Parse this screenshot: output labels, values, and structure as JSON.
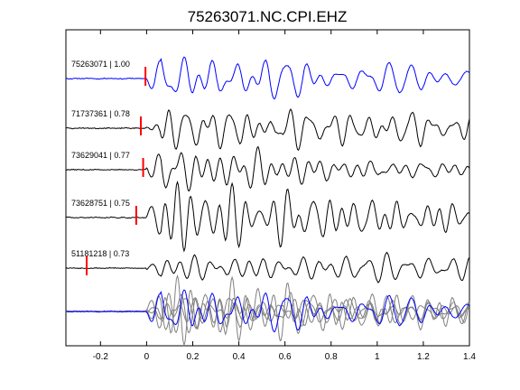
{
  "chart_data": {
    "type": "line",
    "title": "75263071.NC.CPI.EHZ",
    "xlabel": "",
    "ylabel": "",
    "xlim": [
      -0.35,
      1.4
    ],
    "x_ticks": [
      "-0.2",
      "0",
      "0.2",
      "0.4",
      "0.6",
      "0.8",
      "1",
      "1.2",
      "1.4"
    ],
    "x_tick_values": [
      -0.2,
      0,
      0.2,
      0.4,
      0.6,
      0.8,
      1.0,
      1.2,
      1.4
    ],
    "grid": false,
    "colors": {
      "master": "#0000ff",
      "other": "#000000",
      "stack_other": "#808080",
      "pick": "#ff0000"
    },
    "traces": [
      {
        "id": "75263071",
        "cc": "1.00",
        "label": "75263071 | 1.00",
        "pick_time": -0.005,
        "color": "#0000ff",
        "seed": 11
      },
      {
        "id": "71737361",
        "cc": "0.78",
        "label": "71737361 | 0.78",
        "pick_time": -0.025,
        "color": "#000000",
        "seed": 23
      },
      {
        "id": "73629041",
        "cc": "0.77",
        "label": "73629041 | 0.77",
        "pick_time": -0.015,
        "color": "#000000",
        "seed": 37
      },
      {
        "id": "73628751",
        "cc": "0.75",
        "label": "73628751 | 0.75",
        "pick_time": -0.045,
        "color": "#000000",
        "seed": 41
      },
      {
        "id": "51181218",
        "cc": "0.73",
        "label": "51181218 | 0.73",
        "pick_time": -0.26,
        "color": "#000000",
        "seed": 53
      }
    ],
    "stack": {
      "description_visible": false
    }
  }
}
